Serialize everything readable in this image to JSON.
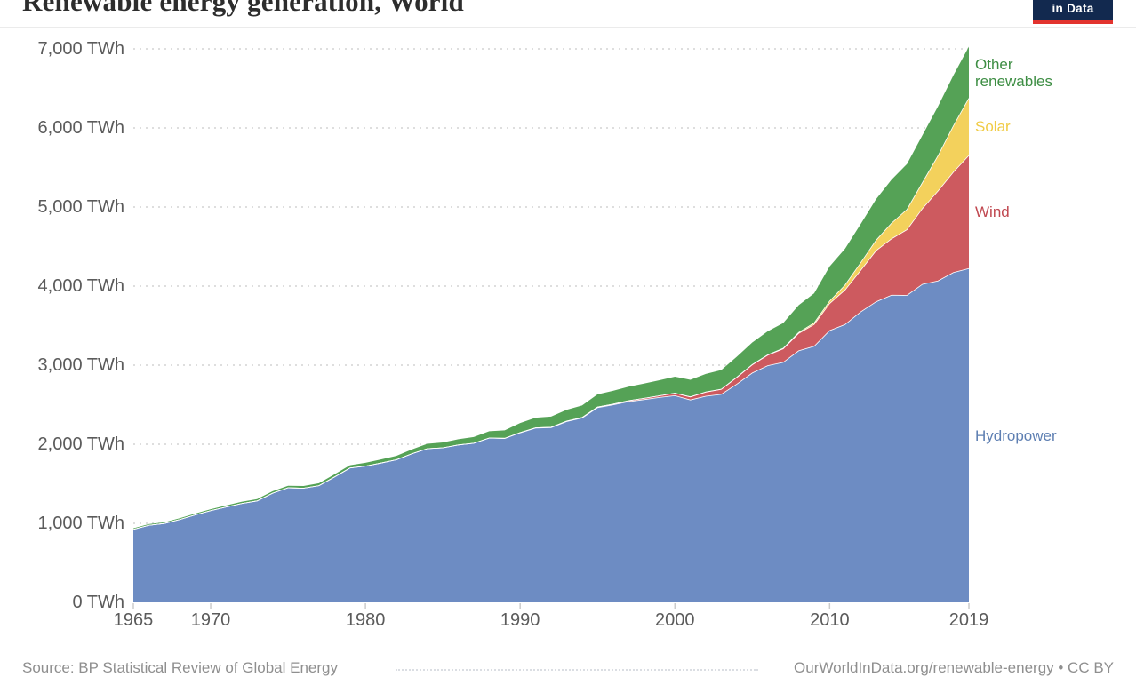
{
  "title": "Renewable energy generation, World",
  "logo": {
    "line": "in Data",
    "bg_color": "#12294f",
    "stripe_color": "#e2332e"
  },
  "footer": {
    "source": "Source: BP Statistical Review of Global Energy",
    "link": "OurWorldInData.org/renewable-energy • CC BY"
  },
  "chart_data": {
    "type": "area",
    "stacked": true,
    "title": "Renewable energy generation, World",
    "unit": "TWh",
    "xlim": [
      1965,
      2019
    ],
    "ylim": [
      0,
      7000
    ],
    "grid": "dotted-horizontal",
    "legend_position": "right-of-plot",
    "x": [
      1965,
      1966,
      1967,
      1968,
      1969,
      1970,
      1971,
      1972,
      1973,
      1974,
      1975,
      1976,
      1977,
      1978,
      1979,
      1980,
      1981,
      1982,
      1983,
      1984,
      1985,
      1986,
      1987,
      1988,
      1989,
      1990,
      1991,
      1992,
      1993,
      1994,
      1995,
      1996,
      1997,
      1998,
      1999,
      2000,
      2001,
      2002,
      2003,
      2004,
      2005,
      2006,
      2007,
      2008,
      2009,
      2010,
      2011,
      2012,
      2013,
      2014,
      2015,
      2016,
      2017,
      2018,
      2019
    ],
    "series": [
      {
        "name": "Hydropower",
        "color": "#6d8cc3",
        "label_color": "#5e7fb2",
        "values": [
          923,
          975,
          998,
          1048,
          1107,
          1160,
          1206,
          1250,
          1283,
          1381,
          1449,
          1444,
          1476,
          1586,
          1699,
          1723,
          1762,
          1803,
          1879,
          1944,
          1954,
          1990,
          2011,
          2077,
          2072,
          2144,
          2204,
          2210,
          2286,
          2331,
          2462,
          2498,
          2538,
          2564,
          2591,
          2614,
          2560,
          2607,
          2631,
          2759,
          2900,
          2993,
          3035,
          3181,
          3238,
          3437,
          3514,
          3672,
          3801,
          3885,
          3882,
          4023,
          4065,
          4171,
          4222
        ]
      },
      {
        "name": "Wind",
        "color": "#cd5a5f",
        "label_color": "#c04850",
        "values": [
          0,
          0,
          0,
          0,
          0,
          0,
          0,
          0,
          0,
          0,
          0,
          0,
          0,
          0,
          0,
          0,
          0,
          0,
          0,
          0,
          1,
          1,
          2,
          2,
          3,
          4,
          4,
          5,
          6,
          7,
          8,
          9,
          12,
          16,
          21,
          31,
          38,
          52,
          63,
          85,
          104,
          133,
          171,
          221,
          276,
          342,
          437,
          524,
          646,
          712,
          831,
          958,
          1136,
          1270,
          1430
        ]
      },
      {
        "name": "Solar",
        "color": "#f3d15c",
        "label_color": "#f0cb45",
        "values": [
          0,
          0,
          0,
          0,
          0,
          0,
          0,
          0,
          0,
          0,
          0,
          0,
          0,
          0,
          0,
          0,
          0,
          0,
          0,
          0,
          0,
          0,
          0,
          0,
          0,
          0,
          0,
          0,
          0,
          0,
          0,
          0,
          0,
          0,
          0,
          1,
          1,
          2,
          2,
          3,
          4,
          5,
          7,
          12,
          20,
          32,
          63,
          97,
          132,
          198,
          256,
          328,
          445,
          585,
          724
        ]
      },
      {
        "name": "Other renewables",
        "color": "#55a256",
        "label_color": "#3e8e44",
        "values": [
          14,
          15,
          15,
          16,
          17,
          19,
          20,
          22,
          23,
          25,
          26,
          28,
          31,
          33,
          36,
          43,
          46,
          50,
          55,
          61,
          67,
          72,
          78,
          85,
          100,
          120,
          127,
          135,
          143,
          152,
          160,
          168,
          177,
          187,
          197,
          208,
          215,
          228,
          242,
          260,
          278,
          298,
          320,
          345,
          375,
          437,
          460,
          490,
          520,
          550,
          575,
          600,
          625,
          640,
          652
        ]
      }
    ],
    "y_ticks": [
      {
        "value": 0,
        "label": "0 TWh"
      },
      {
        "value": 1000,
        "label": "1,000 TWh"
      },
      {
        "value": 2000,
        "label": "2,000 TWh"
      },
      {
        "value": 3000,
        "label": "3,000 TWh"
      },
      {
        "value": 4000,
        "label": "4,000 TWh"
      },
      {
        "value": 5000,
        "label": "5,000 TWh"
      },
      {
        "value": 6000,
        "label": "6,000 TWh"
      },
      {
        "value": 7000,
        "label": "7,000 TWh"
      }
    ],
    "x_ticks": [
      1965,
      1970,
      1980,
      1990,
      2000,
      2010,
      2019
    ]
  }
}
